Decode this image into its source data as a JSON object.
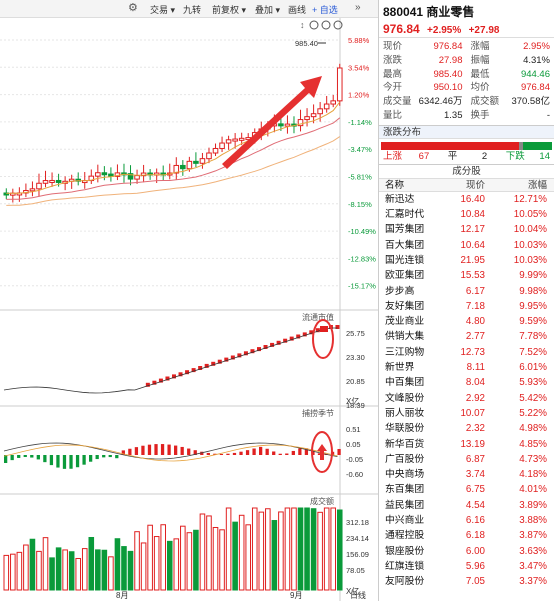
{
  "toolbar": {
    "items": [
      "交易",
      "九转",
      "前复权",
      "叠加",
      "画线",
      "自选"
    ],
    "add_label": "+ 自选"
  },
  "chart": {
    "price_labels": [
      "5.88%",
      "3.54%",
      "1.20%",
      "-1.14%",
      "-3.47%",
      "-5.81%",
      "-8.15%",
      "-10.49%",
      "-12.83%",
      "-15.17%"
    ],
    "high_marker": "985.40",
    "flow_title": "流通市值",
    "flow_axis": [
      "25.75",
      "23.30",
      "20.85",
      "18.39"
    ],
    "flow_unit": "X亿",
    "macd_title": "捕捞季节",
    "macd_axis": [
      "0.51",
      "0.05",
      "-0.05",
      "-0.60"
    ],
    "volume_title": "成交额",
    "volume_axis": [
      "312.18",
      "234.14",
      "156.09",
      "78.05"
    ],
    "volume_unit": "X亿",
    "month_labels": [
      "8月",
      "9月"
    ],
    "period_label": "日线"
  },
  "stock": {
    "code_name": "880041 商业零售",
    "price": "976.84",
    "change_pct": "+2.95%",
    "change": "+27.98"
  },
  "quote": [
    {
      "l1": "现价",
      "v1": "976.84",
      "c1": "red",
      "l2": "涨幅",
      "v2": "2.95%",
      "c2": "red"
    },
    {
      "l1": "涨跌",
      "v1": "27.98",
      "c1": "red",
      "l2": "振幅",
      "v2": "4.31%",
      "c2": "black"
    },
    {
      "l1": "最高",
      "v1": "985.40",
      "c1": "red",
      "l2": "最低",
      "v2": "944.46",
      "c2": "green"
    },
    {
      "l1": "今开",
      "v1": "950.10",
      "c1": "red",
      "l2": "均价",
      "v2": "976.84",
      "c2": "red"
    },
    {
      "l1": "成交量",
      "v1": "6342.46万",
      "c1": "black",
      "l2": "成交额",
      "v2": "370.58亿",
      "c2": "black"
    },
    {
      "l1": "量比",
      "v1": "1.35",
      "c1": "black",
      "l2": "换手",
      "v2": "-",
      "c2": "black"
    }
  ],
  "distribution": {
    "title": "涨跌分布",
    "up_label": "上涨",
    "up_count": "67",
    "flat_label": "平",
    "flat_count": "2",
    "down_label": "下跌",
    "down_count": "14"
  },
  "components": {
    "title": "成分股",
    "headers": [
      "名称",
      "现价",
      "涨幅"
    ],
    "rows": [
      {
        "name": "新迅达",
        "price": "16.40",
        "pct": "12.71%"
      },
      {
        "name": "汇嘉时代",
        "price": "10.84",
        "pct": "10.05%"
      },
      {
        "name": "国芳集团",
        "price": "12.17",
        "pct": "10.04%"
      },
      {
        "name": "百大集团",
        "price": "10.64",
        "pct": "10.03%"
      },
      {
        "name": "国光连锁",
        "price": "21.95",
        "pct": "10.03%"
      },
      {
        "name": "欧亚集团",
        "price": "15.53",
        "pct": "9.99%"
      },
      {
        "name": "步步高",
        "price": "6.17",
        "pct": "9.98%"
      },
      {
        "name": "友好集团",
        "price": "7.18",
        "pct": "9.95%"
      },
      {
        "name": "茂业商业",
        "price": "4.80",
        "pct": "9.59%"
      },
      {
        "name": "供销大集",
        "price": "2.77",
        "pct": "7.78%"
      },
      {
        "name": "三江购物",
        "price": "12.73",
        "pct": "7.52%"
      },
      {
        "name": "新世界",
        "price": "8.11",
        "pct": "6.01%"
      },
      {
        "name": "中百集团",
        "price": "8.04",
        "pct": "5.93%"
      },
      {
        "name": "文峰股份",
        "price": "2.92",
        "pct": "5.42%"
      },
      {
        "name": "丽人丽妆",
        "price": "10.07",
        "pct": "5.22%"
      },
      {
        "name": "华联股份",
        "price": "2.32",
        "pct": "4.98%"
      },
      {
        "name": "新华百货",
        "price": "13.19",
        "pct": "4.85%"
      },
      {
        "name": "广百股份",
        "price": "6.87",
        "pct": "4.73%"
      },
      {
        "name": "中央商场",
        "price": "3.74",
        "pct": "4.18%"
      },
      {
        "name": "东百集团",
        "price": "6.75",
        "pct": "4.01%"
      },
      {
        "name": "益民集团",
        "price": "4.54",
        "pct": "3.89%"
      },
      {
        "name": "中兴商业",
        "price": "6.16",
        "pct": "3.88%"
      },
      {
        "name": "通程控股",
        "price": "6.18",
        "pct": "3.87%"
      },
      {
        "name": "银座股份",
        "price": "6.00",
        "pct": "3.63%"
      },
      {
        "name": "红旗连锁",
        "price": "5.96",
        "pct": "3.47%"
      },
      {
        "name": "友阿股份",
        "price": "7.05",
        "pct": "3.37%"
      }
    ]
  },
  "colors": {
    "up": "#e02020",
    "down": "#0a9a3a",
    "accent_arrow": "#e53030",
    "header_bg": "#eef3fb"
  }
}
